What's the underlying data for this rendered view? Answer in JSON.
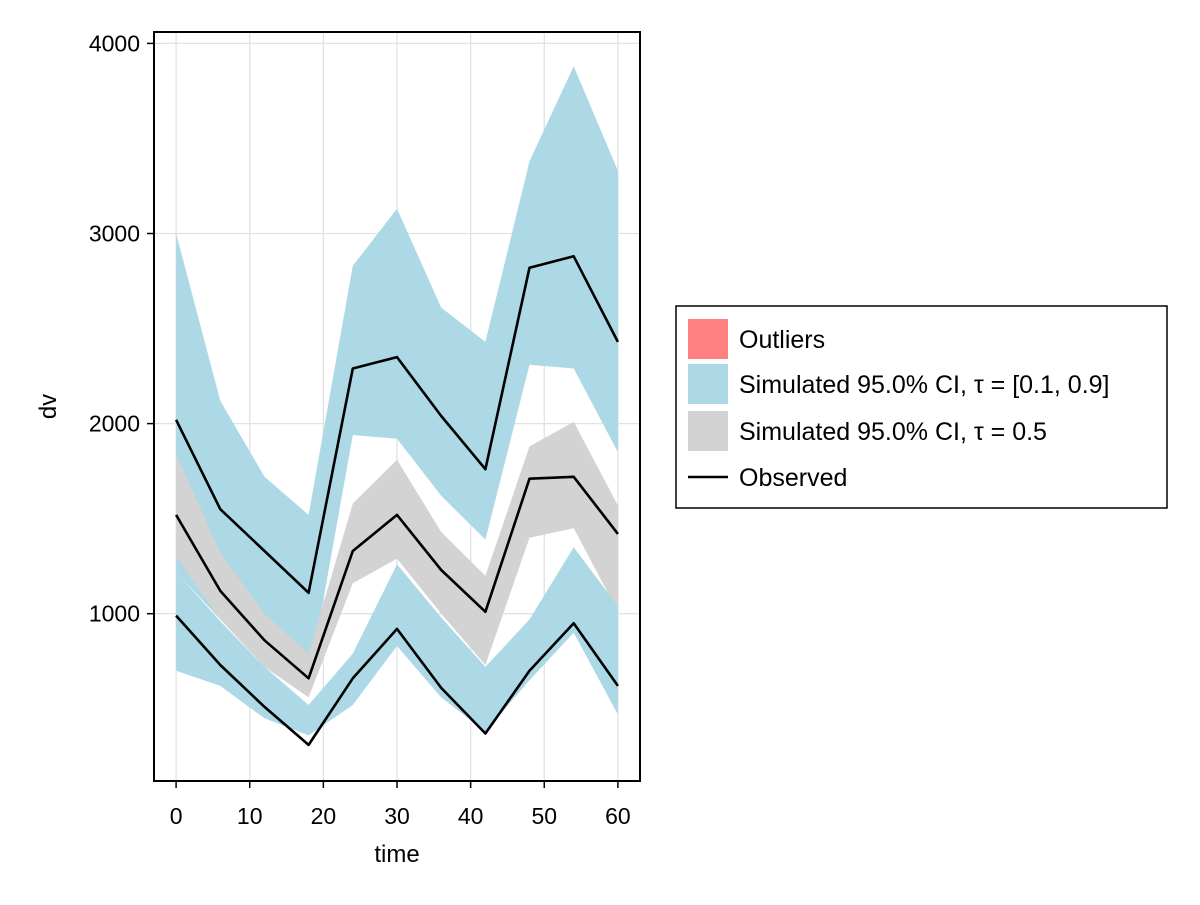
{
  "chart_data": {
    "type": "line",
    "xlabel": "time",
    "ylabel": "dv",
    "xlim": [
      -3,
      63
    ],
    "ylim": [
      120,
      4060
    ],
    "xticks": [
      0,
      10,
      20,
      30,
      40,
      50,
      60
    ],
    "yticks": [
      1000,
      2000,
      3000,
      4000
    ],
    "grid": true,
    "legend_position": "right",
    "x": [
      0,
      6,
      12,
      18,
      24,
      30,
      36,
      42,
      48,
      54,
      60
    ],
    "bands": [
      {
        "name": "Simulated 95.0% CI, τ = [0.1, 0.9]",
        "color": "#add8e6",
        "lower": [
          1220,
          970,
          780,
          640,
          1940,
          1920,
          1620,
          1390,
          2310,
          2290,
          1850
        ],
        "upper": [
          3000,
          2120,
          1720,
          1520,
          2830,
          3130,
          2610,
          2430,
          3380,
          3880,
          3330
        ]
      },
      {
        "name": "Simulated 95.0% CI, τ = 0.5",
        "color": "#d3d3d3",
        "lower": [
          1300,
          970,
          720,
          560,
          1160,
          1290,
          1000,
          730,
          1400,
          1450,
          1010
        ],
        "upper": [
          1840,
          1320,
          1000,
          790,
          1580,
          1810,
          1430,
          1200,
          1880,
          2010,
          1570
        ]
      },
      {
        "name": "Simulated 95.0% CI, τ = [0.1, 0.9]",
        "color": "#add8e6",
        "lower": [
          700,
          620,
          450,
          360,
          520,
          830,
          560,
          380,
          650,
          900,
          470
        ],
        "upper": [
          1220,
          960,
          720,
          520,
          790,
          1260,
          980,
          720,
          970,
          1350,
          1040
        ]
      }
    ],
    "series": [
      {
        "name": "Observed",
        "color": "#000000",
        "values": [
          2020,
          1550,
          1330,
          1110,
          2290,
          2350,
          2040,
          1760,
          2820,
          2880,
          2430
        ]
      },
      {
        "name": "Observed",
        "color": "#000000",
        "values": [
          1520,
          1120,
          860,
          660,
          1330,
          1520,
          1230,
          1010,
          1710,
          1720,
          1420
        ]
      },
      {
        "name": "Observed",
        "color": "#000000",
        "values": [
          990,
          730,
          510,
          310,
          660,
          920,
          610,
          370,
          700,
          950,
          620
        ]
      }
    ],
    "legend": [
      {
        "label": "Outliers",
        "kind": "patch",
        "color": "#ff8080"
      },
      {
        "label": "Simulated 95.0% CI, τ = [0.1, 0.9]",
        "kind": "patch",
        "color": "#add8e6"
      },
      {
        "label": "Simulated 95.0% CI, τ = 0.5",
        "kind": "patch",
        "color": "#d3d3d3"
      },
      {
        "label": "Observed",
        "kind": "line",
        "color": "#000000"
      }
    ]
  }
}
